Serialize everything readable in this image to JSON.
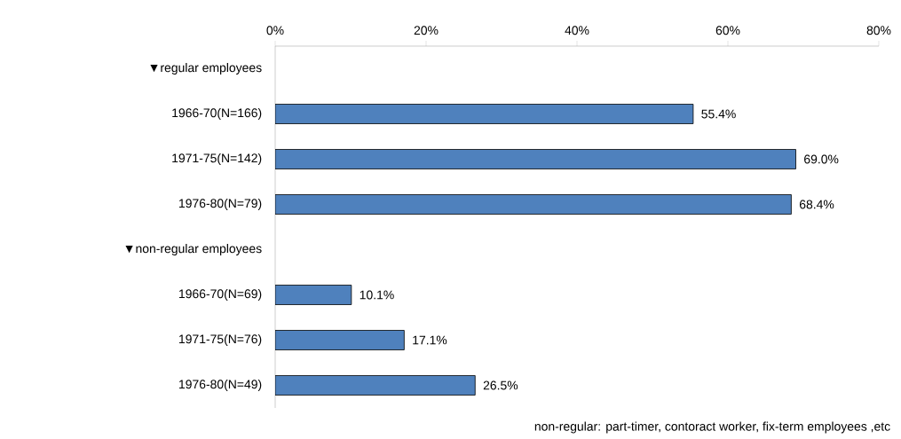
{
  "chart_data": {
    "type": "bar",
    "orientation": "horizontal",
    "categories": [
      "▼regular employees",
      "1966-70(N=166)",
      "1971-75(N=142)",
      "1976-80(N=79)",
      "▼non-regular employees",
      "1966-70(N=69)",
      "1971-75(N=76)",
      "1976-80(N=49)"
    ],
    "values": [
      null,
      55.4,
      69.0,
      68.4,
      null,
      10.1,
      17.1,
      26.5
    ],
    "value_labels": [
      null,
      "55.4%",
      "69.0%",
      "68.4%",
      null,
      "10.1%",
      "17.1%",
      "26.5%"
    ],
    "color": "#4f81bd",
    "xlim": [
      0,
      80
    ],
    "xticks": [
      {
        "value": 0,
        "label": "0%"
      },
      {
        "value": 20,
        "label": "20%"
      },
      {
        "value": 40,
        "label": "40%"
      },
      {
        "value": 60,
        "label": "60%"
      },
      {
        "value": 80,
        "label": "80%"
      }
    ],
    "grid": false,
    "annotations": [
      "non-regular: part-timer, contoract worker, fix-term employees ,etc"
    ]
  }
}
